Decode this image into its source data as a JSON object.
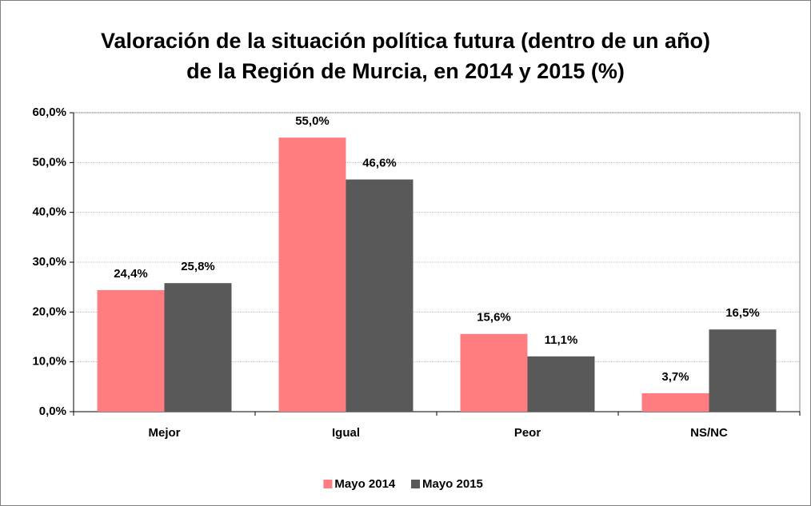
{
  "chart_data": {
    "type": "bar",
    "title": "Valoración de la situación política futura (dentro de un año) de la Región de Murcia, en 2014 y 2015 (%)",
    "categories": [
      "Mejor",
      "Igual",
      "Peor",
      "NS/NC"
    ],
    "series": [
      {
        "name": "Mayo 2014",
        "color": "#ff7c80",
        "values": [
          24.4,
          55.0,
          15.6,
          3.7
        ],
        "value_labels": [
          "24,4%",
          "55,0%",
          "15,6%",
          "3,7%"
        ]
      },
      {
        "name": "Mayo 2015",
        "color": "#595959",
        "values": [
          25.8,
          46.6,
          11.1,
          16.5
        ],
        "value_labels": [
          "25,8%",
          "46,6%",
          "11,1%",
          "16,5%"
        ]
      }
    ],
    "ylim": [
      0,
      60
    ],
    "yticks": [
      {
        "value": 0,
        "label": "0,0%"
      },
      {
        "value": 10,
        "label": "10,0%"
      },
      {
        "value": 20,
        "label": "20,0%"
      },
      {
        "value": 30,
        "label": "30,0%"
      },
      {
        "value": 40,
        "label": "40,0%"
      },
      {
        "value": 50,
        "label": "50,0%"
      },
      {
        "value": 60,
        "label": "60,0%"
      }
    ],
    "grid": true,
    "legend": "bottom"
  }
}
